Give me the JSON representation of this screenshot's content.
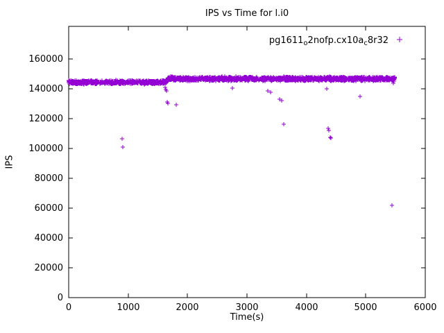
{
  "chart_data": {
    "type": "scatter",
    "title": "IPS vs Time for l.i0",
    "xlabel": "Time(s)",
    "ylabel": "IPS",
    "xlim": [
      0,
      6000
    ],
    "ylim": [
      0,
      182000
    ],
    "xticks": [
      0,
      1000,
      2000,
      3000,
      4000,
      5000,
      6000
    ],
    "yticks": [
      0,
      20000,
      40000,
      60000,
      80000,
      100000,
      120000,
      140000,
      160000
    ],
    "grid": false,
    "marker": "plus",
    "marker_color": "#9400d3",
    "legend": {
      "position": "top-right",
      "label_text": "pg1611_o2nofp.cx10a_c8r32",
      "label_parts": [
        [
          "t",
          "pg1611"
        ],
        [
          "s",
          "o"
        ],
        [
          "t",
          "2nofp.cx10a"
        ],
        [
          "s",
          "c"
        ],
        [
          "t",
          "8r32"
        ]
      ]
    },
    "series": [
      {
        "name": "pg1611_o2nofp.cx10a_c8r32",
        "band_segments": [
          {
            "x_start": 0,
            "x_end": 1650,
            "y_center": 144500,
            "y_spread": 1500,
            "points": 700
          },
          {
            "x_start": 1655,
            "x_end": 5490,
            "y_center": 146800,
            "y_spread": 1600,
            "points": 1700
          }
        ],
        "outliers": [
          [
            900,
            106800
          ],
          [
            915,
            101200
          ],
          [
            1620,
            141000
          ],
          [
            1635,
            139800
          ],
          [
            1650,
            138800
          ],
          [
            1655,
            131200
          ],
          [
            1672,
            130300
          ],
          [
            1810,
            129300
          ],
          [
            2760,
            140800
          ],
          [
            3350,
            138800
          ],
          [
            3400,
            137600
          ],
          [
            3545,
            133300
          ],
          [
            3585,
            132300
          ],
          [
            3620,
            116300
          ],
          [
            4345,
            140000
          ],
          [
            4360,
            113500
          ],
          [
            4375,
            112200
          ],
          [
            4395,
            107400
          ],
          [
            4415,
            106900
          ],
          [
            4900,
            134900
          ],
          [
            5440,
            61900
          ],
          [
            5465,
            143600
          ]
        ]
      }
    ]
  }
}
